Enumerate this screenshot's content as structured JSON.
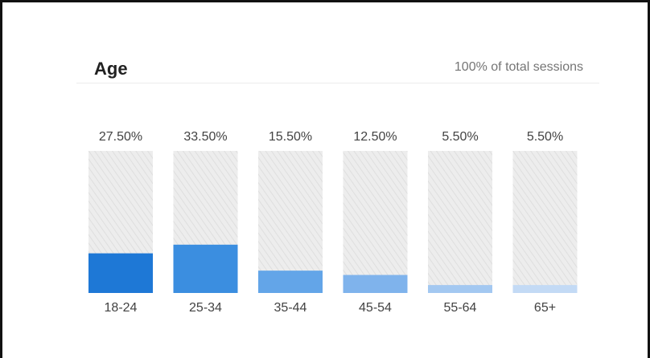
{
  "card": {
    "title": "Age",
    "subtitle": "100% of total sessions"
  },
  "chart_data": {
    "type": "bar",
    "title": "Age",
    "subtitle": "100% of total sessions",
    "categories": [
      "18-24",
      "25-34",
      "35-44",
      "45-54",
      "55-64",
      "65+"
    ],
    "values": [
      27.5,
      33.5,
      15.5,
      12.5,
      5.5,
      5.5
    ],
    "value_labels": [
      "27.50%",
      "33.50%",
      "15.50%",
      "12.50%",
      "5.50%",
      "5.50%"
    ],
    "ylim": [
      0,
      100
    ],
    "bar_colors": [
      "#1e78d6",
      "#3b8ee0",
      "#63a5e8",
      "#7fb3ec",
      "#a3c8f1",
      "#c3daf5"
    ],
    "track_color": "#e9e9e9",
    "grid": false,
    "legend": "none"
  }
}
